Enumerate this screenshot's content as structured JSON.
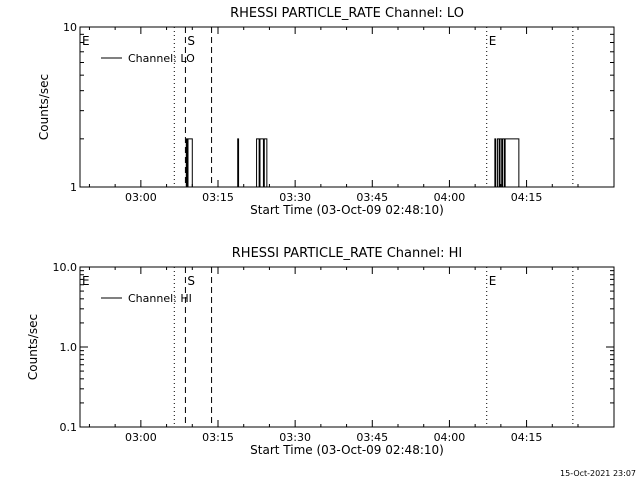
{
  "timestamp": "15-Oct-2021 23:07",
  "chart_data": [
    {
      "type": "line",
      "title": "RHESSI PARTICLE_RATE Channel: LO",
      "xlabel": "Start Time (03-Oct-09 02:48:10)",
      "ylabel": "Counts/sec",
      "y_scale": "log",
      "ylim": [
        1,
        10
      ],
      "y_ticks": [
        "1",
        "10"
      ],
      "xlim": [
        "02:48:10",
        "04:32:00"
      ],
      "x_ticks": [
        "03:00",
        "03:15",
        "03:30",
        "03:45",
        "04:00",
        "04:15"
      ],
      "legend": {
        "position": "top-left",
        "entries": [
          "Channel: LO"
        ]
      },
      "markers": [
        {
          "time": "02:48:10",
          "style": "dotted",
          "label": "E"
        },
        {
          "time": "03:06:30",
          "style": "dotted",
          "label": ""
        },
        {
          "time": "03:08:40",
          "style": "dashed",
          "label": "S"
        },
        {
          "time": "03:13:45",
          "style": "dashed",
          "label": ""
        },
        {
          "time": "04:07:15",
          "style": "dotted",
          "label": "E"
        },
        {
          "time": "04:24:00",
          "style": "dotted",
          "label": ""
        }
      ],
      "series": [
        {
          "values": [
            [
              "03:08:50",
              1
            ],
            [
              "03:08:50",
              2
            ],
            [
              "03:09:00",
              2
            ],
            [
              "03:09:00",
              1
            ],
            [
              "03:09:10",
              1
            ],
            [
              "03:09:10",
              2
            ],
            [
              "03:10:00",
              2
            ],
            [
              "03:10:00",
              1
            ],
            [
              "03:18:50",
              1
            ],
            [
              "03:18:50",
              2
            ],
            [
              "03:19:00",
              2
            ],
            [
              "03:19:00",
              1
            ],
            [
              "03:22:30",
              1
            ],
            [
              "03:22:30",
              2
            ],
            [
              "03:23:00",
              2
            ],
            [
              "03:23:00",
              1
            ],
            [
              "03:23:10",
              1
            ],
            [
              "03:23:10",
              2
            ],
            [
              "03:23:50",
              2
            ],
            [
              "03:23:50",
              1
            ],
            [
              "03:24:00",
              1
            ],
            [
              "03:24:00",
              2
            ],
            [
              "03:24:30",
              2
            ],
            [
              "03:24:30",
              1
            ],
            [
              "04:08:50",
              1
            ],
            [
              "04:08:50",
              2
            ],
            [
              "04:09:00",
              2
            ],
            [
              "04:09:00",
              1
            ],
            [
              "04:09:20",
              1
            ],
            [
              "04:09:20",
              2
            ],
            [
              "04:09:40",
              2
            ],
            [
              "04:09:40",
              1
            ],
            [
              "04:09:50",
              1
            ],
            [
              "04:09:50",
              2
            ],
            [
              "04:10:10",
              2
            ],
            [
              "04:10:10",
              1
            ],
            [
              "04:10:20",
              1
            ],
            [
              "04:10:20",
              2
            ],
            [
              "04:10:40",
              2
            ],
            [
              "04:10:40",
              1
            ],
            [
              "04:10:50",
              1
            ],
            [
              "04:10:50",
              2
            ],
            [
              "04:13:30",
              2
            ],
            [
              "04:13:30",
              1
            ]
          ]
        }
      ]
    },
    {
      "type": "line",
      "title": "RHESSI PARTICLE_RATE Channel: HI",
      "xlabel": "Start Time (03-Oct-09 02:48:10)",
      "ylabel": "Counts/sec",
      "y_scale": "log",
      "ylim": [
        0.1,
        10
      ],
      "y_ticks": [
        "0.1",
        "1.0",
        "10.0"
      ],
      "xlim": [
        "02:48:10",
        "04:32:00"
      ],
      "x_ticks": [
        "03:00",
        "03:15",
        "03:30",
        "03:45",
        "04:00",
        "04:15"
      ],
      "legend": {
        "position": "top-left",
        "entries": [
          "Channel: HI"
        ]
      },
      "markers": [
        {
          "time": "02:48:10",
          "style": "dotted",
          "label": "E"
        },
        {
          "time": "03:06:30",
          "style": "dotted",
          "label": ""
        },
        {
          "time": "03:08:40",
          "style": "dashed",
          "label": "S"
        },
        {
          "time": "03:13:45",
          "style": "dashed",
          "label": ""
        },
        {
          "time": "04:07:15",
          "style": "dotted",
          "label": "E"
        },
        {
          "time": "04:24:00",
          "style": "dotted",
          "label": ""
        }
      ],
      "series": []
    }
  ]
}
